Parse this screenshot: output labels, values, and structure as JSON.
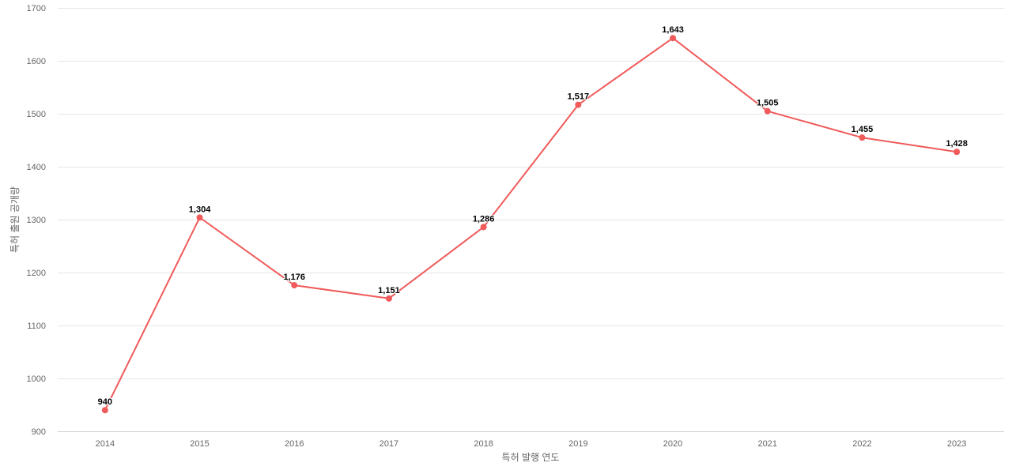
{
  "chart_data": {
    "type": "line",
    "title": "",
    "xlabel": "특허 발행 연도",
    "ylabel": "특허 출원 공개량",
    "categories": [
      "2014",
      "2015",
      "2016",
      "2017",
      "2018",
      "2019",
      "2020",
      "2021",
      "2022",
      "2023"
    ],
    "series": [
      {
        "values": [
          940,
          1304,
          1176,
          1151,
          1286,
          1517,
          1643,
          1505,
          1455,
          1428
        ],
        "labels": [
          "940",
          "1,304",
          "1,176",
          "1,151",
          "1,286",
          "1,517",
          "1,643",
          "1,505",
          "1,455",
          "1,428"
        ],
        "color": "#f05a5a"
      }
    ],
    "ylim": [
      900,
      1700
    ],
    "yticks": [
      900,
      1000,
      1100,
      1200,
      1300,
      1400,
      1500,
      1600,
      1700
    ],
    "grid": true,
    "legend": "none"
  }
}
